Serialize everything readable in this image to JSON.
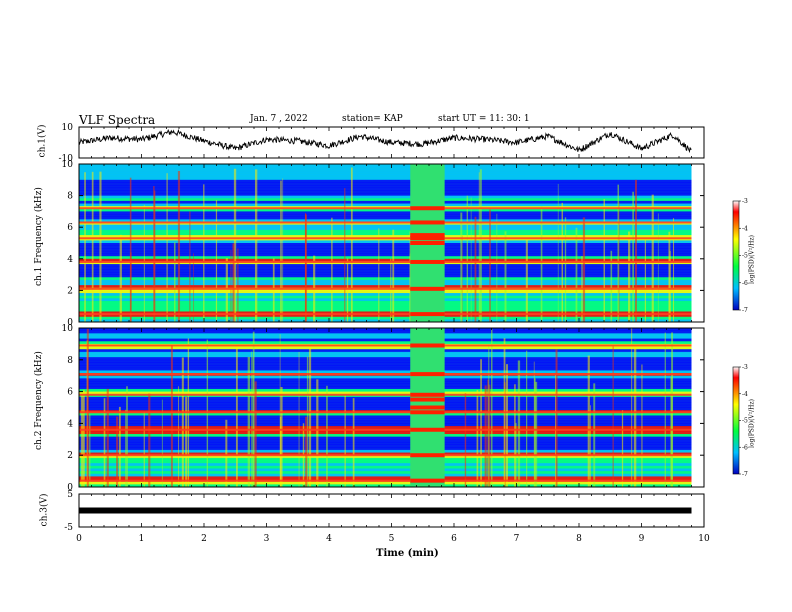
{
  "header": {
    "title": "VLF Spectra",
    "date": "Jan. 7 , 2022",
    "station": "station= KAP",
    "start": "start UT = 11: 30: 1"
  },
  "colorbar": {
    "label": "log(PSD)(V²/Hz)",
    "ticks": [
      "-3",
      "-4",
      "-5",
      "-6",
      "-7"
    ]
  },
  "chart_data": [
    {
      "type": "line",
      "panel": "ch1-waveform",
      "ylabel": "ch.1(V)",
      "yticks": [
        "10",
        "-10"
      ],
      "ylim": [
        -10,
        10
      ],
      "xlim": [
        0,
        9.8
      ],
      "note_shape": "noisy waveform oscillating roughly between -9 and 9 V",
      "x": [
        0,
        0.5,
        1,
        1.5,
        2,
        2.5,
        3,
        3.5,
        4,
        4.5,
        5,
        5.5,
        6,
        6.5,
        7,
        7.5,
        8,
        8.5,
        9,
        9.5,
        9.8
      ],
      "y": [
        0,
        3,
        2,
        7,
        1,
        -4,
        2,
        1,
        -2,
        4,
        0,
        -1,
        3,
        2,
        0,
        4,
        -5,
        6,
        -4,
        5,
        -6
      ]
    },
    {
      "type": "heatmap",
      "panel": "ch1-spectrogram",
      "ylabel": "ch.1 Frequency (kHz)",
      "yticks": [
        "10",
        "8",
        "6",
        "4",
        "2",
        "0"
      ],
      "ylim": [
        0,
        10
      ],
      "xlim": [
        0,
        10
      ],
      "color_scale": [
        "#0000ff",
        "#00bfff",
        "#00ff80",
        "#ffff00",
        "#ff0000"
      ],
      "bright_bands_khz": [
        0.5,
        2.1,
        3.8,
        5.3,
        6.3,
        7.2
      ],
      "dark_bands_khz": [
        3.2,
        4.6,
        6.8,
        8.4
      ],
      "event_interval_min": [
        5.3,
        5.85
      ]
    },
    {
      "type": "heatmap",
      "panel": "ch2-spectrogram",
      "ylabel": "ch.2 Frequency (kHz)",
      "yticks": [
        "10",
        "8",
        "6",
        "4",
        "2",
        "0"
      ],
      "ylim": [
        0,
        10
      ],
      "xlim": [
        0,
        10
      ],
      "color_scale": [
        "#0000ff",
        "#00bfff",
        "#00ff80",
        "#ffff00",
        "#ff0000"
      ],
      "bright_bands_khz": [
        0.4,
        2.0,
        3.6,
        4.7,
        5.8,
        7.1,
        8.9
      ],
      "dark_bands_khz": [
        2.7,
        4.2,
        5.3,
        6.6,
        7.6
      ],
      "event_interval_min": [
        5.3,
        5.85
      ]
    },
    {
      "type": "line",
      "panel": "ch3-waveform",
      "ylabel": "ch.3(V)",
      "yticks": [
        "5",
        "-5"
      ],
      "ylim": [
        -5,
        5
      ],
      "xlim": [
        0,
        9.8
      ],
      "x": [
        0,
        9.8
      ],
      "y": [
        0,
        0
      ]
    }
  ],
  "xaxis": {
    "label": "Time (min)",
    "ticks": [
      "0",
      "1",
      "2",
      "3",
      "4",
      "5",
      "6",
      "7",
      "8",
      "9",
      "10"
    ]
  }
}
